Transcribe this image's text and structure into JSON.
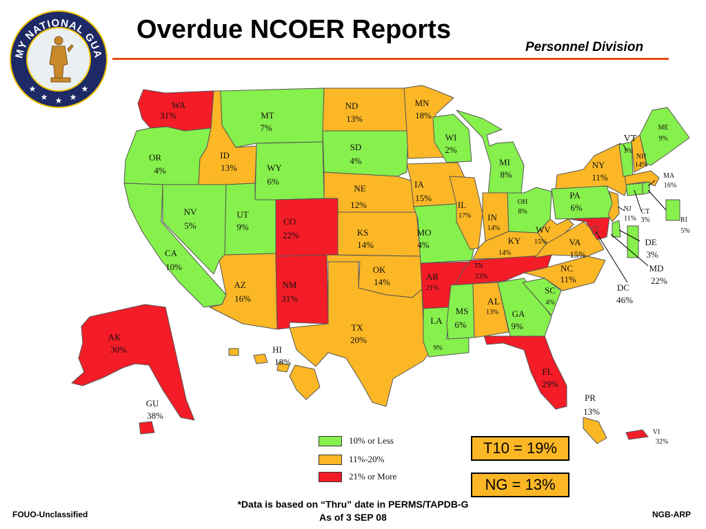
{
  "header": {
    "title": "Overdue NCOER Reports",
    "division": "Personnel Division",
    "seal_text": "ARMY NATIONAL GUARD"
  },
  "colors": {
    "low": "#86f04c",
    "mid": "#fbb725",
    "high": "#f41c27",
    "rule": "#e8491d"
  },
  "legend": [
    {
      "label": "10% or Less",
      "color": "#86f04c"
    },
    {
      "label": "11%-20%",
      "color": "#fbb725"
    },
    {
      "label": "21% or More",
      "color": "#f41c27"
    }
  ],
  "summary": {
    "t10": "T10 = 19%",
    "ng": "NG = 13%"
  },
  "notes": {
    "line1": "*Data is based on “Thru” date in PERMS/TAPDB-G",
    "line2": "As of  3 SEP 08"
  },
  "footer": {
    "left": "FOUO-Unclassified",
    "right": "NGB-ARP"
  },
  "states": {
    "WA": {
      "abbr": "WA",
      "pct": "31%"
    },
    "OR": {
      "abbr": "OR",
      "pct": "4%"
    },
    "CA": {
      "abbr": "CA",
      "pct": "10%"
    },
    "NV": {
      "abbr": "NV",
      "pct": "5%"
    },
    "ID": {
      "abbr": "ID",
      "pct": "13%"
    },
    "MT": {
      "abbr": "MT",
      "pct": "7%"
    },
    "WY": {
      "abbr": "WY",
      "pct": "6%"
    },
    "UT": {
      "abbr": "UT",
      "pct": "9%"
    },
    "AZ": {
      "abbr": "AZ",
      "pct": "16%"
    },
    "CO": {
      "abbr": "CO",
      "pct": "22%"
    },
    "NM": {
      "abbr": "NM",
      "pct": "31%"
    },
    "ND": {
      "abbr": "ND",
      "pct": "13%"
    },
    "SD": {
      "abbr": "SD",
      "pct": "4%"
    },
    "NE": {
      "abbr": "NE",
      "pct": "12%"
    },
    "KS": {
      "abbr": "KS",
      "pct": "14%"
    },
    "OK": {
      "abbr": "OK",
      "pct": "14%"
    },
    "TX": {
      "abbr": "TX",
      "pct": "20%"
    },
    "MN": {
      "abbr": "MN",
      "pct": "18%"
    },
    "IA": {
      "abbr": "IA",
      "pct": "15%"
    },
    "MO": {
      "abbr": "MO",
      "pct": "4%"
    },
    "AR": {
      "abbr": "AR",
      "pct": "21%"
    },
    "LA": {
      "abbr": "LA",
      "pct": "9%"
    },
    "WI": {
      "abbr": "WI",
      "pct": "2%"
    },
    "IL": {
      "abbr": "IL",
      "pct": "17%"
    },
    "MI": {
      "abbr": "MI",
      "pct": "8%"
    },
    "IN": {
      "abbr": "IN",
      "pct": "14%"
    },
    "OH": {
      "abbr": "OH",
      "pct": "8%"
    },
    "KY": {
      "abbr": "KY",
      "pct": "14%"
    },
    "TN": {
      "abbr": "TN",
      "pct": "23%"
    },
    "MS": {
      "abbr": "MS",
      "pct": "6%"
    },
    "AL": {
      "abbr": "AL",
      "pct": "13%"
    },
    "GA": {
      "abbr": "GA",
      "pct": "9%"
    },
    "FL": {
      "abbr": "FL",
      "pct": "29%"
    },
    "SC": {
      "abbr": "SC",
      "pct": "4%"
    },
    "NC": {
      "abbr": "NC",
      "pct": "11%"
    },
    "VA": {
      "abbr": "VA",
      "pct": "15%"
    },
    "WV": {
      "abbr": "WV",
      "pct": "15%"
    },
    "PA": {
      "abbr": "PA",
      "pct": "6%"
    },
    "NY": {
      "abbr": "NY",
      "pct": "11%"
    },
    "VT": {
      "abbr": "VT",
      "pct": "1%"
    },
    "NH": {
      "abbr": "NH",
      "pct": "14%"
    },
    "ME": {
      "abbr": "ME",
      "pct": "9%"
    },
    "MA": {
      "abbr": "MA",
      "pct": "16%"
    },
    "RI": {
      "abbr": "RI",
      "pct": "5%"
    },
    "CT": {
      "abbr": "CT",
      "pct": "3%"
    },
    "NJ": {
      "abbr": "NJ",
      "pct": "11%"
    },
    "DE": {
      "abbr": "DE",
      "pct": "3%"
    },
    "MD": {
      "abbr": "MD",
      "pct": "22%"
    },
    "DC": {
      "abbr": "DC",
      "pct": "46%"
    },
    "AK": {
      "abbr": "AK",
      "pct": "30%"
    },
    "HI": {
      "abbr": "HI",
      "pct": "18%"
    },
    "GU": {
      "abbr": "GU",
      "pct": "38%"
    },
    "PR": {
      "abbr": "PR",
      "pct": "13%"
    },
    "VI": {
      "abbr": "VI",
      "pct": "32%"
    }
  }
}
